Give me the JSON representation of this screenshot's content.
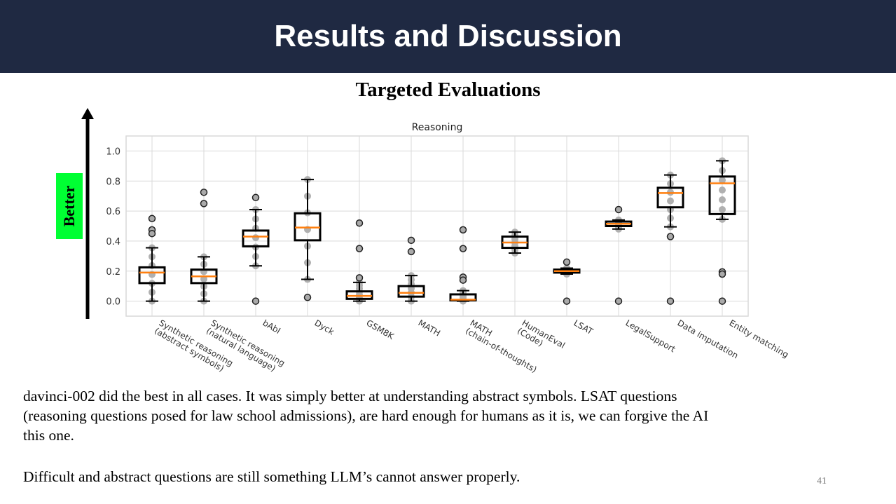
{
  "header": {
    "title": "Results and Discussion"
  },
  "subtitle": "Targeted Evaluations",
  "better_label": "Better",
  "chart_data": {
    "type": "box",
    "title": "Reasoning",
    "xlabel": "",
    "ylabel": "",
    "ylim": [
      -0.1,
      1.1
    ],
    "yticks": [
      "0.0",
      "0.2",
      "0.4",
      "0.6",
      "0.8",
      "1.0"
    ],
    "grid": true,
    "categories": [
      [
        "Synthetic reasoning",
        "(abstract symbols)"
      ],
      [
        "Synthetic reasoning",
        "(natural language)"
      ],
      [
        "bAbI"
      ],
      [
        "Dyck"
      ],
      [
        "GSM8K"
      ],
      [
        "MATH"
      ],
      [
        "MATH",
        "(chain-of-thoughts)"
      ],
      [
        "HumanEval",
        "(Code)"
      ],
      [
        "LSAT"
      ],
      [
        "LegalSupport"
      ],
      [
        "Data imputation"
      ],
      [
        "Entity matching"
      ]
    ],
    "boxes": [
      {
        "whislo": 0.0,
        "q1": 0.12,
        "med": 0.19,
        "q3": 0.225,
        "whishi": 0.355,
        "fliers": [
          0.55,
          0.475,
          0.45
        ]
      },
      {
        "whislo": 0.0,
        "q1": 0.12,
        "med": 0.165,
        "q3": 0.21,
        "whishi": 0.295,
        "fliers": [
          0.725,
          0.65
        ]
      },
      {
        "whislo": 0.235,
        "q1": 0.365,
        "med": 0.43,
        "q3": 0.47,
        "whishi": 0.61,
        "fliers": [
          0.69,
          0.0
        ]
      },
      {
        "whislo": 0.145,
        "q1": 0.405,
        "med": 0.49,
        "q3": 0.585,
        "whishi": 0.81,
        "fliers": [
          0.025
        ]
      },
      {
        "whislo": 0.0,
        "q1": 0.015,
        "med": 0.035,
        "q3": 0.065,
        "whishi": 0.125,
        "fliers": [
          0.52,
          0.35,
          0.155
        ]
      },
      {
        "whislo": 0.0,
        "q1": 0.03,
        "med": 0.055,
        "q3": 0.1,
        "whishi": 0.17,
        "fliers": [
          0.405,
          0.33
        ]
      },
      {
        "whislo": 0.0,
        "q1": 0.005,
        "med": 0.01,
        "q3": 0.045,
        "whishi": 0.07,
        "fliers": [
          0.475,
          0.35,
          0.16,
          0.14
        ]
      },
      {
        "whislo": 0.32,
        "q1": 0.355,
        "med": 0.39,
        "q3": 0.43,
        "whishi": 0.46,
        "fliers": []
      },
      {
        "whislo": 0.18,
        "q1": 0.19,
        "med": 0.2,
        "q3": 0.21,
        "whishi": 0.22,
        "fliers": [
          0.26,
          0.0
        ]
      },
      {
        "whislo": 0.48,
        "q1": 0.5,
        "med": 0.515,
        "q3": 0.53,
        "whishi": 0.54,
        "fliers": [
          0.61,
          0.0
        ]
      },
      {
        "whislo": 0.495,
        "q1": 0.625,
        "med": 0.72,
        "q3": 0.755,
        "whishi": 0.84,
        "fliers": [
          0.43,
          0.0
        ]
      },
      {
        "whislo": 0.545,
        "q1": 0.58,
        "med": 0.785,
        "q3": 0.83,
        "whishi": 0.935,
        "fliers": [
          0.195,
          0.18,
          0.0
        ]
      }
    ],
    "colors": {
      "median": "#ff7f0e",
      "box": "#000000",
      "points": "#b0b0b0",
      "grid": "#d9d9d9"
    }
  },
  "body": {
    "p1_line1": "davinci-002 did the best in all cases. It was simply better at understanding abstract symbols.  LSAT questions",
    "p1_line2": "(reasoning questions posed for law school admissions),  are hard enough for humans as it is, we can forgive the AI",
    "p1_line3": "this one.",
    "p2": "Difficult and abstract questions are still something LLM’s cannot answer properly."
  },
  "page_number": "41"
}
